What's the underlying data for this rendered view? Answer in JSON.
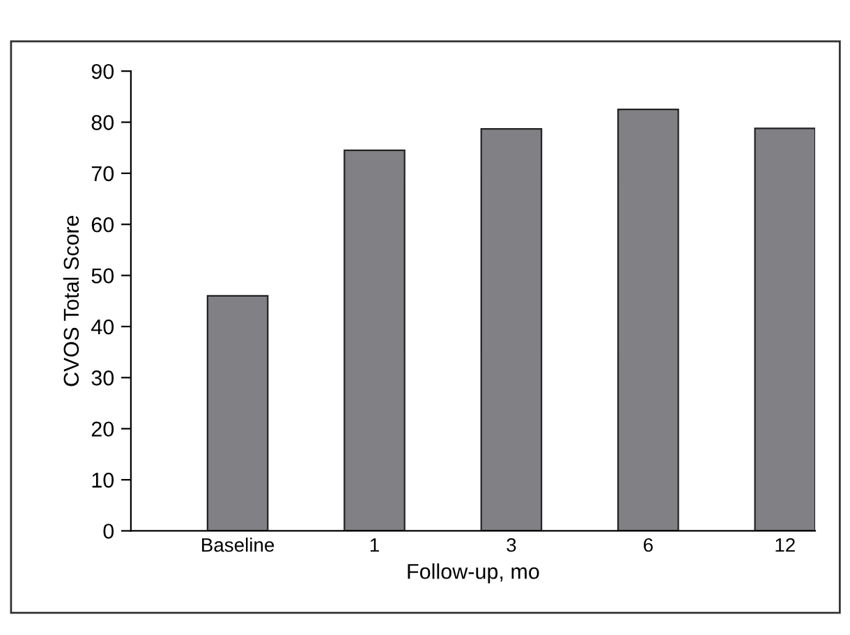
{
  "chart_data": {
    "type": "bar",
    "xlabel": "Follow-up, mo",
    "ylabel": "CVOS Total Score",
    "categories": [
      "Baseline",
      "1",
      "3",
      "6",
      "12"
    ],
    "values": [
      46,
      74.5,
      78.7,
      82.5,
      78.8
    ],
    "color": "#808085",
    "ylim": [
      0,
      90
    ],
    "yticks": [
      0,
      10,
      20,
      30,
      40,
      50,
      60,
      70,
      80,
      90
    ],
    "grid": false,
    "legend": false
  }
}
